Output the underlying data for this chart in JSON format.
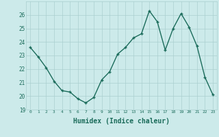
{
  "x": [
    0,
    1,
    2,
    3,
    4,
    5,
    6,
    7,
    8,
    9,
    10,
    11,
    12,
    13,
    14,
    15,
    16,
    17,
    18,
    19,
    20,
    21,
    22,
    23
  ],
  "y": [
    23.6,
    22.9,
    22.1,
    21.1,
    20.4,
    20.3,
    19.8,
    19.5,
    19.9,
    21.2,
    21.8,
    23.1,
    23.6,
    24.3,
    24.6,
    26.3,
    25.5,
    23.4,
    25.0,
    26.1,
    25.1,
    23.7,
    21.4,
    20.1
  ],
  "line_color": "#1a6b5a",
  "marker": "+",
  "marker_size": 3,
  "marker_color": "#1a6b5a",
  "bg_color": "#cceaea",
  "grid_color": "#aacfcf",
  "tick_color": "#1a6b5a",
  "xlabel": "Humidex (Indice chaleur)",
  "xlabel_fontsize": 7,
  "xlabel_color": "#1a6b5a",
  "ylim": [
    19,
    27
  ],
  "yticks": [
    19,
    20,
    21,
    22,
    23,
    24,
    25,
    26
  ],
  "xlim": [
    -0.5,
    23.5
  ],
  "xticks": [
    0,
    1,
    2,
    3,
    4,
    5,
    6,
    7,
    8,
    9,
    10,
    11,
    12,
    13,
    14,
    15,
    16,
    17,
    18,
    19,
    20,
    21,
    22,
    23
  ],
  "line_width": 1.0
}
